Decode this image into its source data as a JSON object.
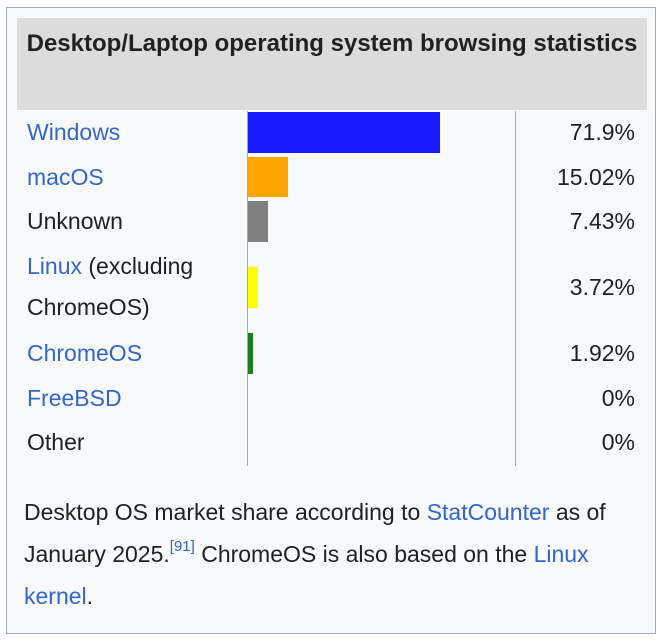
{
  "chart_data": {
    "type": "bar",
    "title": "Desktop/Laptop operating system browsing statistics",
    "categories": [
      "Windows",
      "macOS",
      "Unknown",
      "Linux (excluding ChromeOS)",
      "ChromeOS",
      "FreeBSD",
      "Other"
    ],
    "values": [
      71.9,
      15.02,
      7.43,
      3.72,
      1.92,
      0,
      0
    ],
    "value_labels": [
      "71.9%",
      "15.02%",
      "7.43%",
      "3.72%",
      "1.92%",
      "0%",
      "0%"
    ],
    "colors": [
      "#1a1aff",
      "#ffa500",
      "#808080",
      "#ffff00",
      "#1e7d1e",
      "#cccccc",
      "#cccccc"
    ],
    "xlim": [
      0,
      100
    ]
  },
  "rows": [
    {
      "link_text": "Windows",
      "plain_text": ""
    },
    {
      "link_text": "macOS",
      "plain_text": ""
    },
    {
      "link_text": "",
      "plain_text": "Unknown"
    },
    {
      "link_text": "Linux",
      "plain_text": " (excluding",
      "second_line": "ChromeOS)"
    },
    {
      "link_text": "ChromeOS",
      "plain_text": ""
    },
    {
      "link_text": "FreeBSD",
      "plain_text": ""
    },
    {
      "link_text": "",
      "plain_text": "Other"
    }
  ],
  "caption": {
    "text1": "Desktop OS market share according to ",
    "link1": "StatCounter",
    "text2": " as of January 2025.",
    "ref": "[91]",
    "text3": " ChromeOS is also based on the ",
    "link2": "Linux kernel",
    "text4": "."
  }
}
